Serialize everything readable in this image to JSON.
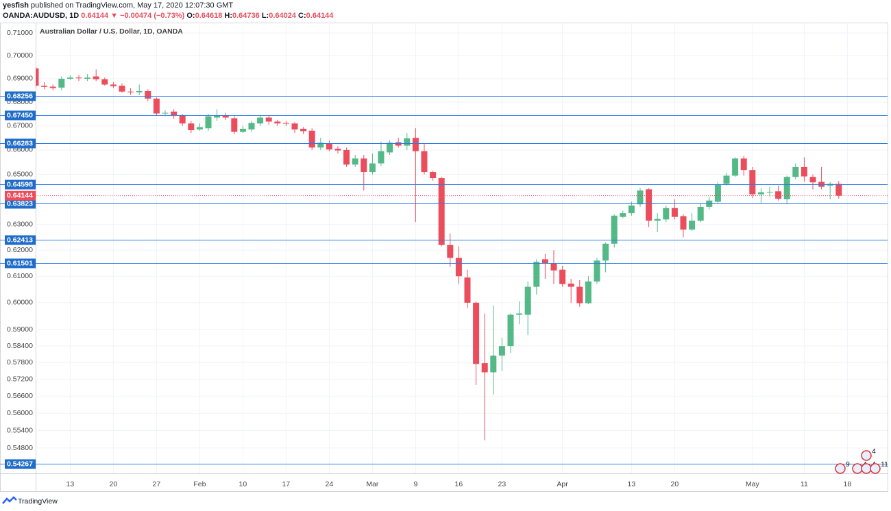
{
  "header": {
    "author": "yesfish",
    "published": "published on TradingView.com, May 17, 2020 12:07:30 GMT",
    "symbol": "OANDA:AUDUSD, 1D",
    "last": "0.64144",
    "arrow": "▼",
    "change": "−0.00474 (−0.73%)",
    "ohlc": [
      {
        "label": "O:",
        "value": "0.64618"
      },
      {
        "label": "H:",
        "value": "0.64736"
      },
      {
        "label": "L:",
        "value": "0.64024"
      },
      {
        "label": "C:",
        "value": "0.64144"
      }
    ]
  },
  "footer": {
    "brand": "TradingView"
  },
  "chart_data": {
    "type": "candlestick",
    "title": "Australian Dollar / U.S. Dollar, 1D, OANDA",
    "log": true,
    "grid": true,
    "up_color": "#53b987",
    "down_color": "#eb4d5c",
    "level_color": "#2f7be6",
    "level_box_color": "#1f6dc9",
    "ylim": [
      0.5394,
      0.7146
    ],
    "yticks": [
      {
        "value": 0.71,
        "label": "0.71000"
      },
      {
        "value": 0.7,
        "label": "0.70000"
      },
      {
        "value": 0.69,
        "label": "0.69000"
      },
      {
        "value": 0.68,
        "label": "0.68000"
      },
      {
        "value": 0.67,
        "label": "0.67000"
      },
      {
        "value": 0.66,
        "label": "0.66000"
      },
      {
        "value": 0.65,
        "label": "0.65000"
      },
      {
        "value": 0.63,
        "label": "0.63000"
      },
      {
        "value": 0.62,
        "label": "0.62000"
      },
      {
        "value": 0.61,
        "label": "0.61000"
      },
      {
        "value": 0.6,
        "label": "0.60000"
      },
      {
        "value": 0.59,
        "label": "0.59000"
      },
      {
        "value": 0.584,
        "label": "0.58400"
      },
      {
        "value": 0.578,
        "label": "0.57800"
      },
      {
        "value": 0.572,
        "label": "0.57200"
      },
      {
        "value": 0.566,
        "label": "0.56600"
      },
      {
        "value": 0.56,
        "label": "0.56000"
      },
      {
        "value": 0.554,
        "label": "0.55400"
      },
      {
        "value": 0.548,
        "label": "0.54800"
      }
    ],
    "levels": [
      {
        "value": 0.68256,
        "label": "0.68256"
      },
      {
        "value": 0.6745,
        "label": "0.67450"
      },
      {
        "value": 0.66283,
        "label": "0.66283"
      },
      {
        "value": 0.64598,
        "label": "0.64598"
      },
      {
        "value": 0.63823,
        "label": "0.63823"
      },
      {
        "value": 0.62413,
        "label": "0.62413"
      },
      {
        "value": 0.61501,
        "label": "0.61501"
      },
      {
        "value": 0.54267,
        "label": "0.54267"
      }
    ],
    "last_price": {
      "value": 0.64144,
      "label": "0.64144"
    },
    "events": [
      "9",
      "4",
      "4",
      "4",
      "11"
    ],
    "categories": [
      null,
      null,
      null,
      null,
      "13",
      null,
      null,
      null,
      null,
      "20",
      null,
      null,
      null,
      null,
      "27",
      null,
      null,
      null,
      null,
      "Feb",
      null,
      null,
      null,
      null,
      "10",
      null,
      null,
      null,
      null,
      "17",
      null,
      null,
      null,
      null,
      "24",
      null,
      null,
      null,
      null,
      "Mar",
      null,
      null,
      null,
      null,
      "9",
      null,
      null,
      null,
      null,
      "16",
      null,
      null,
      null,
      null,
      "23",
      null,
      null,
      null,
      null,
      null,
      null,
      "Apr",
      null,
      null,
      null,
      null,
      null,
      null,
      null,
      "13",
      null,
      null,
      null,
      null,
      "20",
      null,
      null,
      null,
      null,
      null,
      null,
      null,
      null,
      "May",
      null,
      null,
      null,
      null,
      null,
      "11",
      null,
      null,
      null,
      null,
      "18",
      null,
      null,
      null,
      null
    ],
    "open": [
      0.6945,
      0.687,
      0.6866,
      0.6862,
      0.69,
      0.6905,
      0.69,
      0.691,
      0.6898,
      0.6875,
      0.687,
      0.6845,
      0.6842,
      0.6847,
      0.6815,
      0.6752,
      0.676,
      0.6745,
      0.671,
      0.6685,
      0.669,
      0.6735,
      0.6745,
      0.6732,
      0.6675,
      0.6685,
      0.671,
      0.6735,
      0.6718,
      0.6712,
      0.671,
      0.6688,
      0.668,
      0.661,
      0.6628,
      0.6605,
      0.66,
      0.654,
      0.6565,
      0.651,
      0.6545,
      0.659,
      0.6632,
      0.6618,
      0.665,
      0.6595,
      0.651,
      0.6485,
      0.622,
      0.617,
      0.6095,
      0.6,
      0.5778,
      0.5745,
      0.5805,
      0.584,
      0.5955,
      0.5955,
      0.606,
      0.6165,
      0.615,
      0.6125,
      0.6072,
      0.606,
      0.5998,
      0.608,
      0.616,
      0.6225,
      0.633,
      0.6345,
      0.638,
      0.644,
      0.6315,
      0.632,
      0.6365,
      0.6333,
      0.628,
      0.6315,
      0.637,
      0.639,
      0.6462,
      0.6495,
      0.6565,
      0.6518,
      0.642,
      0.6428,
      0.6432,
      0.64,
      0.649,
      0.653,
      0.649,
      0.647,
      0.6455,
      0.64618,
      null,
      null,
      null,
      null,
      null
    ],
    "high": [
      0.695,
      0.6885,
      0.6875,
      0.691,
      0.6915,
      0.6915,
      0.692,
      0.694,
      0.6905,
      0.6885,
      0.688,
      0.686,
      0.6875,
      0.6855,
      0.682,
      0.6765,
      0.677,
      0.675,
      0.672,
      0.671,
      0.675,
      0.677,
      0.6755,
      0.674,
      0.67,
      0.672,
      0.6745,
      0.6745,
      0.6725,
      0.672,
      0.6715,
      0.6695,
      0.669,
      0.665,
      0.664,
      0.6615,
      0.661,
      0.658,
      0.658,
      0.6585,
      0.6635,
      0.664,
      0.665,
      0.667,
      0.669,
      0.6625,
      0.6515,
      0.649,
      0.6265,
      0.6215,
      0.6125,
      0.6005,
      0.596,
      0.599,
      0.587,
      0.596,
      0.6005,
      0.608,
      0.6165,
      0.6185,
      0.62,
      0.614,
      0.609,
      0.6085,
      0.61,
      0.617,
      0.623,
      0.634,
      0.6355,
      0.639,
      0.6445,
      0.6445,
      0.6345,
      0.6375,
      0.64,
      0.634,
      0.6345,
      0.6385,
      0.641,
      0.647,
      0.6505,
      0.657,
      0.6575,
      0.653,
      0.6445,
      0.645,
      0.6455,
      0.6495,
      0.6545,
      0.657,
      0.65,
      0.653,
      0.647,
      0.64736,
      null,
      null,
      null,
      null,
      null
    ],
    "low": [
      0.686,
      0.6855,
      0.685,
      0.685,
      0.6895,
      0.689,
      0.689,
      0.689,
      0.687,
      0.686,
      0.684,
      0.683,
      0.683,
      0.6805,
      0.6745,
      0.674,
      0.673,
      0.67,
      0.667,
      0.668,
      0.668,
      0.672,
      0.6725,
      0.6665,
      0.667,
      0.6675,
      0.67,
      0.6705,
      0.67,
      0.67,
      0.667,
      0.6665,
      0.66,
      0.66,
      0.6595,
      0.6585,
      0.653,
      0.653,
      0.6435,
      0.65,
      0.6535,
      0.658,
      0.661,
      0.66,
      0.631,
      0.65,
      0.6475,
      0.6215,
      0.6135,
      0.607,
      0.598,
      0.57,
      0.5506,
      0.5665,
      0.575,
      0.5815,
      0.592,
      0.588,
      0.603,
      0.609,
      0.607,
      0.606,
      0.6,
      0.5985,
      0.5995,
      0.607,
      0.6115,
      0.621,
      0.6325,
      0.6335,
      0.637,
      0.629,
      0.627,
      0.631,
      0.632,
      0.625,
      0.6275,
      0.631,
      0.636,
      0.6385,
      0.6455,
      0.649,
      0.6495,
      0.6405,
      0.6385,
      0.641,
      0.6395,
      0.638,
      0.648,
      0.647,
      0.644,
      0.644,
      0.64,
      0.64024,
      null,
      null,
      null,
      null,
      null
    ],
    "close": [
      0.687,
      0.6865,
      0.686,
      0.69,
      0.6905,
      0.6902,
      0.6905,
      0.6898,
      0.6875,
      0.6868,
      0.6845,
      0.6842,
      0.6847,
      0.6815,
      0.6752,
      0.6755,
      0.6742,
      0.671,
      0.6682,
      0.6695,
      0.674,
      0.6745,
      0.6735,
      0.6675,
      0.6688,
      0.6712,
      0.6735,
      0.6718,
      0.671,
      0.671,
      0.6685,
      0.6678,
      0.661,
      0.663,
      0.6602,
      0.6598,
      0.654,
      0.6565,
      0.651,
      0.6545,
      0.6595,
      0.663,
      0.6618,
      0.6648,
      0.6595,
      0.651,
      0.6485,
      0.622,
      0.617,
      0.61,
      0.6,
      0.5775,
      0.5745,
      0.5805,
      0.584,
      0.5955,
      0.596,
      0.606,
      0.6155,
      0.615,
      0.6122,
      0.607,
      0.606,
      0.5998,
      0.608,
      0.616,
      0.6225,
      0.6335,
      0.6345,
      0.6375,
      0.6435,
      0.6315,
      0.6322,
      0.6365,
      0.633,
      0.628,
      0.6315,
      0.637,
      0.6395,
      0.646,
      0.6495,
      0.6565,
      0.6518,
      0.642,
      0.6428,
      0.643,
      0.6402,
      0.649,
      0.653,
      0.6492,
      0.6468,
      0.645,
      0.6462,
      0.64144,
      null,
      null,
      null,
      null,
      null
    ]
  }
}
